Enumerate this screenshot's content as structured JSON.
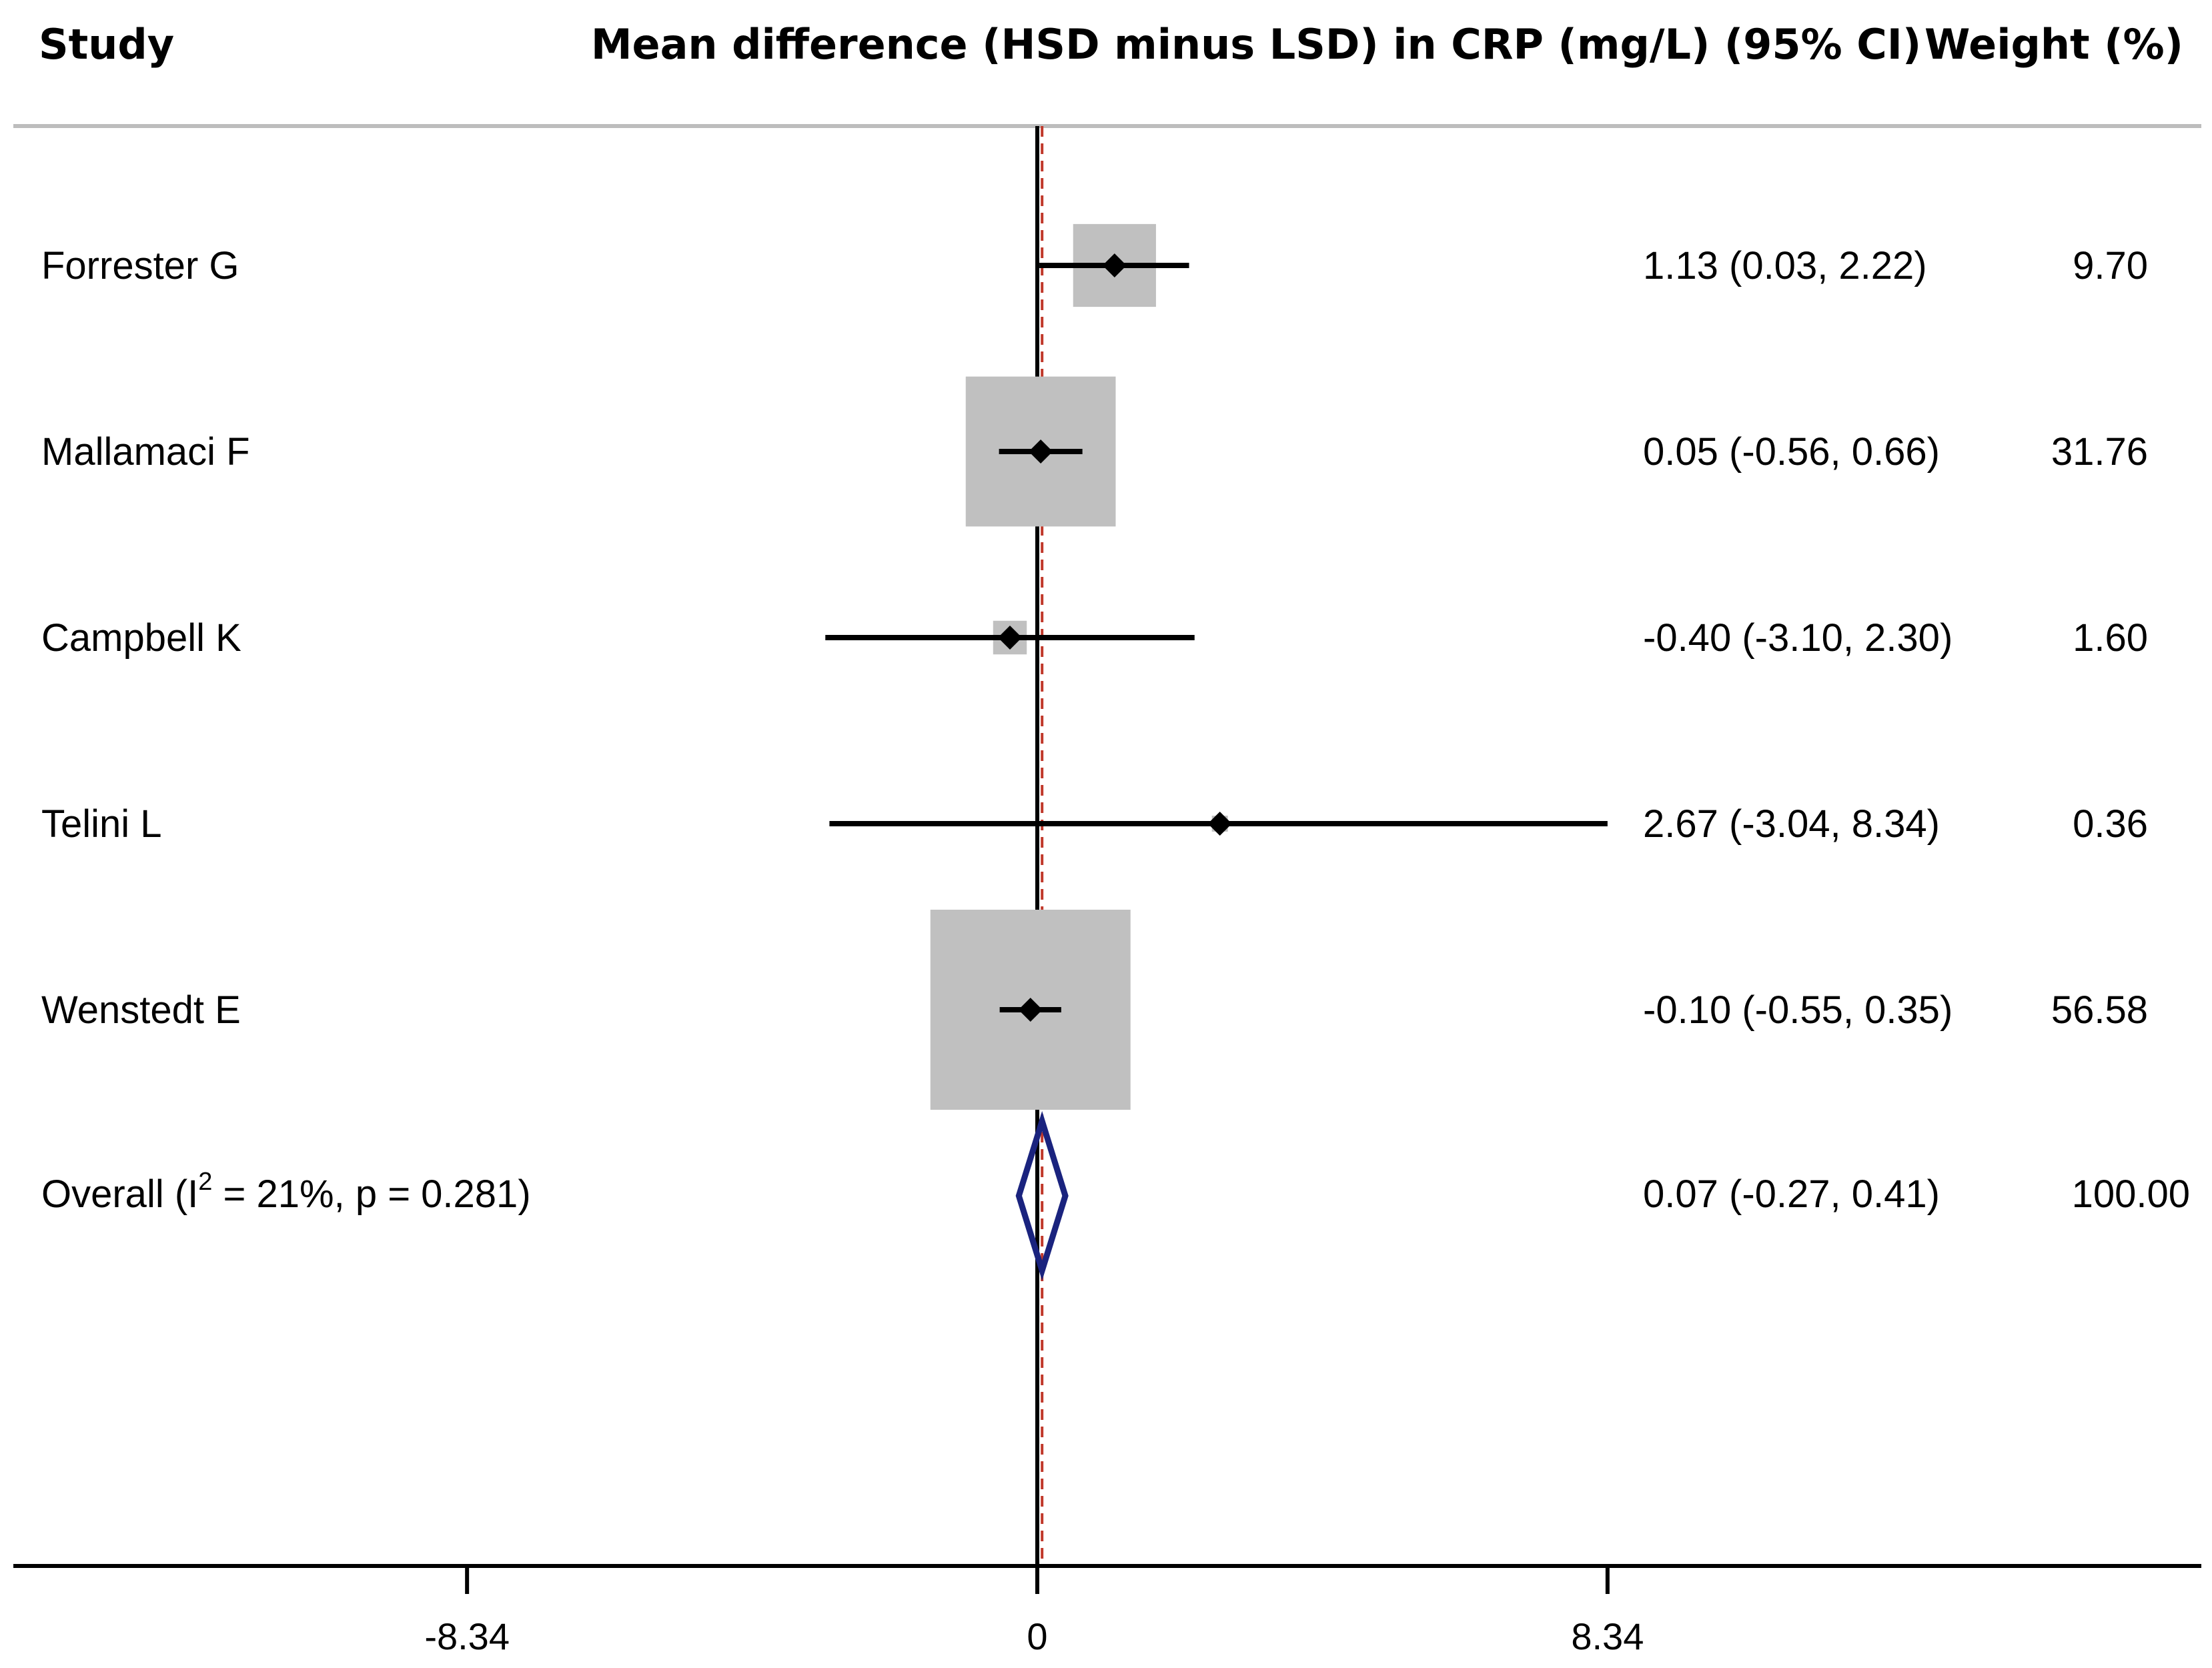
{
  "chart_data": {
    "type": "forest",
    "headers": {
      "study": "Study",
      "effect": "Mean difference (HSD minus LSD) in CRP (mg/L) (95% CI)",
      "weight": "Weight (%)"
    },
    "studies": [
      {
        "name": "Forrester G",
        "estimate": 1.13,
        "lower": 0.03,
        "upper": 2.22,
        "ci_text": "1.13 (0.03, 2.22)",
        "weight": 9.7,
        "weight_text": "9.70"
      },
      {
        "name": "Mallamaci F",
        "estimate": 0.05,
        "lower": -0.56,
        "upper": 0.66,
        "ci_text": "0.05 (-0.56, 0.66)",
        "weight": 31.76,
        "weight_text": "31.76"
      },
      {
        "name": "Campbell K",
        "estimate": -0.4,
        "lower": -3.1,
        "upper": 2.3,
        "ci_text": "-0.40 (-3.10, 2.30)",
        "weight": 1.6,
        "weight_text": "1.60"
      },
      {
        "name": "Telini L",
        "estimate": 2.67,
        "lower": -3.04,
        "upper": 8.34,
        "ci_text": "2.67 (-3.04, 8.34)",
        "weight": 0.36,
        "weight_text": "0.36"
      },
      {
        "name": "Wenstedt E",
        "estimate": -0.1,
        "lower": -0.55,
        "upper": 0.35,
        "ci_text": "-0.10 (-0.55, 0.35)",
        "weight": 56.58,
        "weight_text": "56.58"
      }
    ],
    "overall": {
      "label_prefix": "Overall  (I",
      "label_sup": "2",
      "label_suffix": " = 21%, p = 0.281)",
      "estimate": 0.07,
      "lower": -0.27,
      "upper": 0.41,
      "ci_text": "0.07 (-0.27, 0.41)",
      "weight_text": "100.00"
    },
    "x_axis": {
      "ticks": [
        -8.34,
        0,
        8.34
      ],
      "tick_labels": [
        "-8.34",
        "0",
        "8.34"
      ],
      "range": [
        -15.1,
        17.0
      ]
    },
    "null_line": 0,
    "colors": {
      "box": "#c0c0c0",
      "line": "#000000",
      "overall_diamond": "#1a237e",
      "overall_line": "#c0392b",
      "divider": "#bdbdbd"
    }
  }
}
